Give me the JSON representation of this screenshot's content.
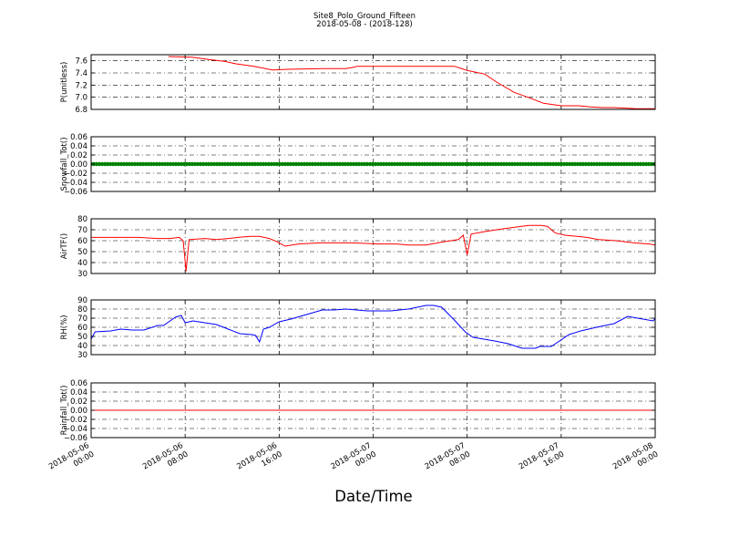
{
  "figure": {
    "title": "Site8_Polo_Ground_Fifteen",
    "subtitle": "2018-05-08 - (2018-128)",
    "xlabel": "Date/Time"
  },
  "chart_data": [
    {
      "type": "line",
      "ylabel": "P(unitless)",
      "xlim": [
        "2018-05-06 00:00",
        "2018-05-08 00:00"
      ],
      "ylim": [
        6.8,
        7.7
      ],
      "yticks": [
        "7.6",
        "7.4",
        "7.2",
        "7.0",
        "6.8"
      ],
      "x_tick_labels": [
        [
          "2018-05-06",
          "00:00"
        ],
        [
          "2018-05-06",
          "08:00"
        ],
        [
          "2018-05-06",
          "16:00"
        ],
        [
          "2018-05-07",
          "00:00"
        ],
        [
          "2018-05-07",
          "08:00"
        ],
        [
          "2018-05-07",
          "16:00"
        ],
        [
          "2018-05-08",
          "00:00"
        ]
      ],
      "grid": true,
      "series": [
        {
          "color": "#ff0000",
          "x": [
            "2018-05-06 06:35",
            "2018-05-06 08:35",
            "2018-05-06 10:00",
            "2018-05-06 11:20",
            "2018-05-06 12:20",
            "2018-05-06 13:50",
            "2018-05-06 14:50",
            "2018-05-06 15:25",
            "2018-05-06 16:45",
            "2018-05-06 19:40",
            "2018-05-06 21:40",
            "2018-05-06 22:15",
            "2018-05-06 22:40",
            "2018-05-07 04:00",
            "2018-05-07 06:55",
            "2018-05-07 08:00",
            "2018-05-07 09:30",
            "2018-05-07 10:30",
            "2018-05-07 12:00",
            "2018-05-07 13:10",
            "2018-05-07 14:30",
            "2018-05-07 16:00",
            "2018-05-07 17:30",
            "2018-05-07 18:30",
            "2018-05-07 19:30",
            "2018-05-07 20:30",
            "2018-05-07 22:25",
            "2018-05-08 00:00"
          ],
          "y": [
            7.67,
            7.66,
            7.62,
            7.59,
            7.55,
            7.51,
            7.47,
            7.45,
            7.46,
            7.47,
            7.47,
            7.49,
            7.51,
            7.51,
            7.51,
            7.44,
            7.38,
            7.25,
            7.08,
            7.0,
            6.9,
            6.86,
            6.86,
            6.84,
            6.83,
            6.83,
            6.81,
            6.81
          ]
        }
      ]
    },
    {
      "type": "line",
      "ylabel": "Snowfall_Tot()",
      "xlim": [
        "2018-05-06 00:00",
        "2018-05-08 00:00"
      ],
      "ylim": [
        -0.06,
        0.06
      ],
      "yticks": [
        "0.06",
        "0.04",
        "0.02",
        "0.00",
        "−0.02",
        "−0.04",
        "−0.06"
      ],
      "x_tick_labels": [
        [
          "2018-05-06",
          "00:00"
        ],
        [
          "2018-05-06",
          "08:00"
        ],
        [
          "2018-05-06",
          "16:00"
        ],
        [
          "2018-05-07",
          "00:00"
        ],
        [
          "2018-05-07",
          "08:00"
        ],
        [
          "2018-05-07",
          "16:00"
        ],
        [
          "2018-05-08",
          "00:00"
        ]
      ],
      "grid": true,
      "series": [
        {
          "color": "#008000",
          "marker": "dot",
          "x": [
            "2018-05-06 00:00",
            "2018-05-08 00:00"
          ],
          "y": [
            0,
            0
          ]
        }
      ]
    },
    {
      "type": "line",
      "ylabel": "AirTF()",
      "xlim": [
        "2018-05-06 00:00",
        "2018-05-08 00:00"
      ],
      "ylim": [
        30,
        80
      ],
      "yticks": [
        "80",
        "70",
        "60",
        "50",
        "40",
        "30"
      ],
      "x_tick_labels": [
        [
          "2018-05-06",
          "00:00"
        ],
        [
          "2018-05-06",
          "08:00"
        ],
        [
          "2018-05-06",
          "16:00"
        ],
        [
          "2018-05-07",
          "00:00"
        ],
        [
          "2018-05-07",
          "08:00"
        ],
        [
          "2018-05-07",
          "16:00"
        ],
        [
          "2018-05-08",
          "00:00"
        ]
      ],
      "grid": true,
      "series": [
        {
          "color": "#ff0000",
          "x": [
            "2018-05-06 00:00",
            "2018-05-06 00:50",
            "2018-05-06 02:20",
            "2018-05-06 04:00",
            "2018-05-06 05:40",
            "2018-05-06 06:40",
            "2018-05-06 07:30",
            "2018-05-06 07:50",
            "2018-05-06 08:05",
            "2018-05-06 08:20",
            "2018-05-06 09:40",
            "2018-05-06 10:40",
            "2018-05-06 11:40",
            "2018-05-06 12:30",
            "2018-05-06 13:35",
            "2018-05-06 14:20",
            "2018-05-06 15:10",
            "2018-05-06 15:50",
            "2018-05-06 16:30",
            "2018-05-06 17:40",
            "2018-05-06 19:30",
            "2018-05-06 21:00",
            "2018-05-06 22:10",
            "2018-05-07 00:30",
            "2018-05-07 02:00",
            "2018-05-07 03:00",
            "2018-05-07 04:30",
            "2018-05-07 06:00",
            "2018-05-07 07:15",
            "2018-05-07 07:40",
            "2018-05-07 08:00",
            "2018-05-07 08:20",
            "2018-05-07 09:20",
            "2018-05-07 10:30",
            "2018-05-07 11:50",
            "2018-05-07 13:15",
            "2018-05-07 14:20",
            "2018-05-07 14:50",
            "2018-05-07 15:30",
            "2018-05-07 16:20",
            "2018-05-07 17:20",
            "2018-05-07 18:10",
            "2018-05-07 19:10",
            "2018-05-07 20:40",
            "2018-05-07 22:10",
            "2018-05-07 23:30",
            "2018-05-08 00:00"
          ],
          "y": [
            63,
            63,
            63,
            63,
            62,
            62,
            63,
            60,
            32,
            61,
            62,
            61,
            62,
            63,
            64,
            64,
            62,
            59,
            55,
            57,
            58,
            58,
            58,
            57,
            57,
            56,
            56,
            59,
            61,
            65,
            47,
            66,
            68,
            70,
            72,
            74,
            74,
            73,
            67,
            65,
            64,
            63,
            61,
            60,
            58,
            57,
            56
          ]
        }
      ]
    },
    {
      "type": "line",
      "ylabel": "RH(%)",
      "xlim": [
        "2018-05-06 00:00",
        "2018-05-08 00:00"
      ],
      "ylim": [
        30,
        90
      ],
      "yticks": [
        "90",
        "80",
        "70",
        "60",
        "50",
        "40",
        "30"
      ],
      "x_tick_labels": [
        [
          "2018-05-06",
          "00:00"
        ],
        [
          "2018-05-06",
          "08:00"
        ],
        [
          "2018-05-06",
          "16:00"
        ],
        [
          "2018-05-07",
          "00:00"
        ],
        [
          "2018-05-07",
          "08:00"
        ],
        [
          "2018-05-07",
          "16:00"
        ],
        [
          "2018-05-08",
          "00:00"
        ]
      ],
      "grid": true,
      "series": [
        {
          "color": "#0000ff",
          "x": [
            "2018-05-06 00:00",
            "2018-05-06 00:20",
            "2018-05-06 01:40",
            "2018-05-06 02:30",
            "2018-05-06 03:30",
            "2018-05-06 04:30",
            "2018-05-06 05:40",
            "2018-05-06 06:10",
            "2018-05-06 07:10",
            "2018-05-06 07:40",
            "2018-05-06 08:00",
            "2018-05-06 08:40",
            "2018-05-06 10:40",
            "2018-05-06 11:40",
            "2018-05-06 12:40",
            "2018-05-06 13:40",
            "2018-05-06 14:00",
            "2018-05-06 14:20",
            "2018-05-06 14:40",
            "2018-05-06 15:10",
            "2018-05-06 16:00",
            "2018-05-06 17:00",
            "2018-05-06 18:20",
            "2018-05-06 19:40",
            "2018-05-06 20:40",
            "2018-05-06 21:40",
            "2018-05-06 23:30",
            "2018-05-07 01:30",
            "2018-05-07 03:00",
            "2018-05-07 04:30",
            "2018-05-07 05:10",
            "2018-05-07 05:50",
            "2018-05-07 06:50",
            "2018-05-07 07:50",
            "2018-05-07 08:30",
            "2018-05-07 10:20",
            "2018-05-07 11:30",
            "2018-05-07 12:40",
            "2018-05-07 13:50",
            "2018-05-07 14:10",
            "2018-05-07 15:10",
            "2018-05-07 16:40",
            "2018-05-07 17:40",
            "2018-05-07 19:00",
            "2018-05-07 20:30",
            "2018-05-07 21:40",
            "2018-05-07 22:30",
            "2018-05-07 23:50",
            "2018-05-08 00:00"
          ],
          "y": [
            47,
            55,
            56,
            58,
            57,
            57,
            62,
            62,
            71,
            73,
            65,
            67,
            63,
            58,
            53,
            52,
            51,
            44,
            58,
            60,
            66,
            69,
            74,
            79,
            79,
            80,
            78,
            78,
            80,
            84,
            84,
            82,
            69,
            55,
            49,
            45,
            42,
            37,
            37,
            39,
            39,
            52,
            56,
            60,
            64,
            72,
            70,
            67,
            70
          ]
        }
      ]
    },
    {
      "type": "line",
      "ylabel": "Rainfall_Tot()",
      "xlim": [
        "2018-05-06 00:00",
        "2018-05-08 00:00"
      ],
      "ylim": [
        -0.06,
        0.06
      ],
      "yticks": [
        "0.06",
        "0.04",
        "0.02",
        "0.00",
        "−0.02",
        "−0.04",
        "−0.06"
      ],
      "x_tick_labels": [
        [
          "2018-05-06",
          "00:00"
        ],
        [
          "2018-05-06",
          "08:00"
        ],
        [
          "2018-05-06",
          "16:00"
        ],
        [
          "2018-05-07",
          "00:00"
        ],
        [
          "2018-05-07",
          "08:00"
        ],
        [
          "2018-05-07",
          "16:00"
        ],
        [
          "2018-05-08",
          "00:00"
        ]
      ],
      "grid": true,
      "series": [
        {
          "color": "#ff0000",
          "x": [
            "2018-05-06 00:00",
            "2018-05-08 00:00"
          ],
          "y": [
            0,
            0
          ]
        }
      ]
    }
  ]
}
